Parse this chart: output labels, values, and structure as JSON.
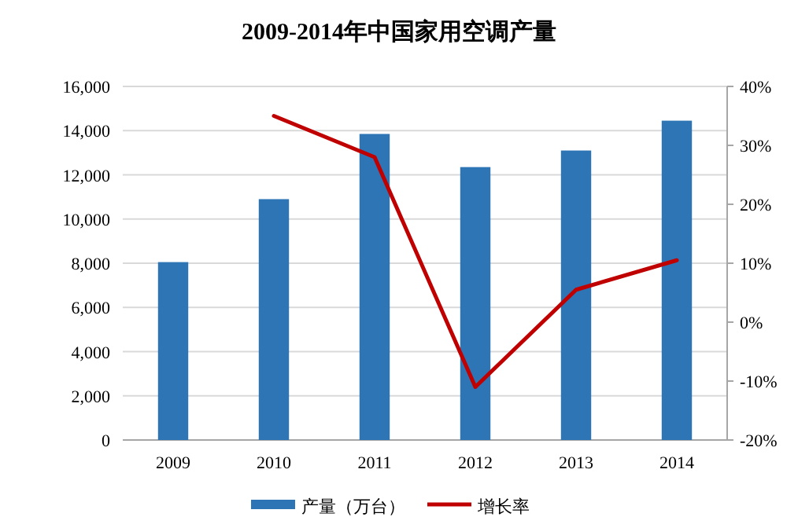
{
  "chart_data": {
    "type": "bar",
    "title": "2009-2014年中国家用空调产量",
    "categories": [
      "2009",
      "2010",
      "2011",
      "2012",
      "2013",
      "2014"
    ],
    "series": [
      {
        "name": "产量（万台）",
        "color": "#2e75b6",
        "values": [
          8050,
          10900,
          13850,
          12350,
          13100,
          14450
        ]
      },
      {
        "name": "增长率",
        "type": "line",
        "axis": "y2",
        "color": "#c00000",
        "values": [
          null,
          35,
          28,
          -11,
          5.5,
          10.5
        ]
      }
    ],
    "ylim": [
      0,
      16000
    ],
    "yticks": [
      {
        "value": 0,
        "label": "0"
      },
      {
        "value": 2000,
        "label": "2,000"
      },
      {
        "value": 4000,
        "label": "4,000"
      },
      {
        "value": 6000,
        "label": "6,000"
      },
      {
        "value": 8000,
        "label": "8,000"
      },
      {
        "value": 10000,
        "label": "10,000"
      },
      {
        "value": 12000,
        "label": "12,000"
      },
      {
        "value": 14000,
        "label": "14,000"
      },
      {
        "value": 16000,
        "label": "16,000"
      }
    ],
    "y2lim": [
      -20,
      40
    ],
    "y2ticks": [
      {
        "value": -20,
        "label": "-20%"
      },
      {
        "value": -10,
        "label": "-10%"
      },
      {
        "value": 0,
        "label": "0%"
      },
      {
        "value": 10,
        "label": "10%"
      },
      {
        "value": 20,
        "label": "20%"
      },
      {
        "value": 30,
        "label": "30%"
      },
      {
        "value": 40,
        "label": "40%"
      }
    ],
    "grid": "y",
    "legend": "bottom",
    "line_style": "solid",
    "marker": "none"
  }
}
